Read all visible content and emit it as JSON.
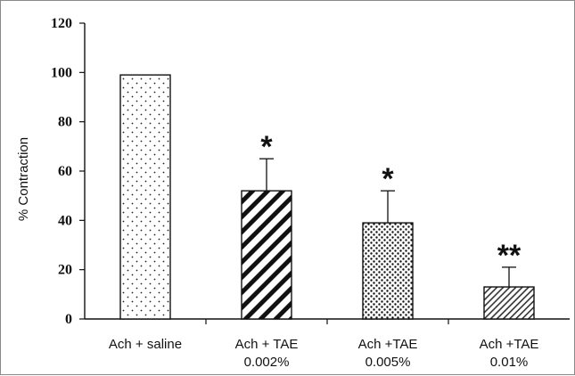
{
  "chart_data": {
    "type": "bar",
    "categories": [
      [
        "Ach + saline"
      ],
      [
        "Ach + TAE",
        "0.002%"
      ],
      [
        "Ach +TAE",
        "0.005%"
      ],
      [
        "Ach +TAE",
        "0.01%"
      ]
    ],
    "values": [
      99,
      52,
      39,
      13
    ],
    "errors": [
      0,
      13,
      13,
      8
    ],
    "significance": [
      "",
      "*",
      "*",
      "**"
    ],
    "patterns": [
      "fine-dots",
      "wide-diagonal",
      "dense-dots",
      "narrow-diagonal"
    ],
    "ylabel": "% Contraction",
    "ylim": [
      0,
      120
    ],
    "yticks": [
      "0",
      "20",
      "40",
      "60",
      "80",
      "100",
      "120"
    ],
    "grid": false,
    "colors": {
      "stroke": "#111111",
      "fill": "#ffffff"
    }
  }
}
